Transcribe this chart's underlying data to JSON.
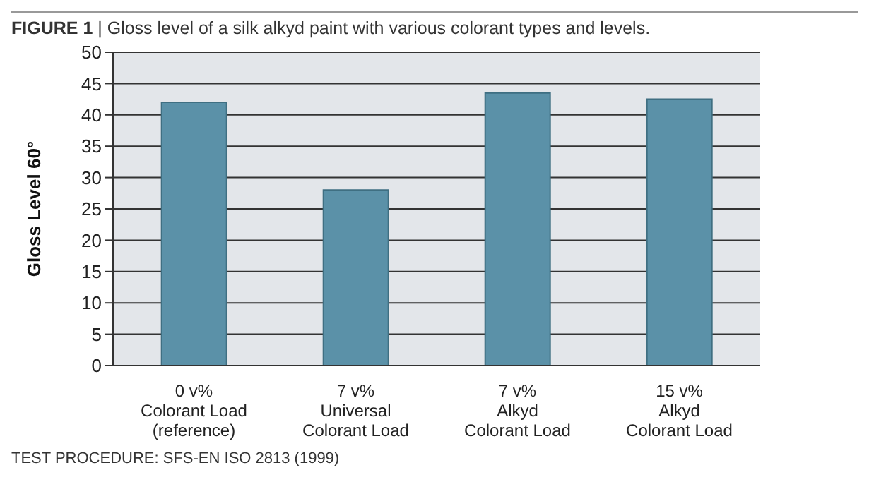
{
  "chart_data": {
    "type": "bar",
    "title": "FIGURE 1 | Gloss level of a silk alkyd paint with various colorant types and levels.",
    "ylabel": "Gloss Level 60°",
    "categories": [
      "0 v%\nColorant Load\n(reference)",
      "7 v%\nUniversal\nColorant Load",
      "7 v%\nAlkyd\nColorant Load",
      "15 v%\nAlkyd\nColorant Load"
    ],
    "values": [
      42,
      28,
      43.5,
      42.5
    ],
    "color": "#5b91a8",
    "ylim": [
      0,
      50
    ],
    "yticks": [
      0,
      5,
      10,
      15,
      20,
      25,
      30,
      35,
      40,
      45,
      50
    ],
    "grid": "y",
    "annotations": [
      "TEST PROCEDURE: SFS-EN ISO 2813 (1999)"
    ]
  }
}
